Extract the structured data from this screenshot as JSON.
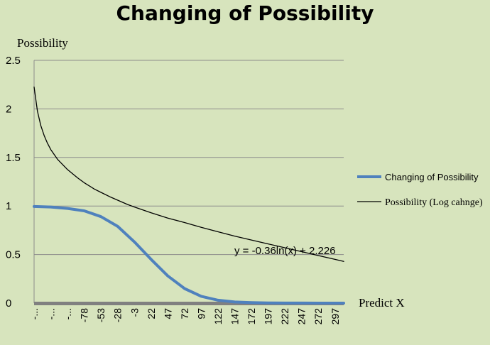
{
  "chart_data": {
    "type": "line",
    "title": "Changing of Possibility",
    "ylabel": "Possibility",
    "xlabel": "Predict X",
    "ylim": [
      0,
      2.5
    ],
    "yticks": [
      "0",
      "0.5",
      "1",
      "1.5",
      "2",
      "2.5"
    ],
    "ytick_values": [
      0,
      0.5,
      1,
      1.5,
      2,
      2.5
    ],
    "xlim": [
      -153,
      310
    ],
    "xtick_labels": [
      "-...",
      "-...",
      "-...",
      "-78",
      "-53",
      "-28",
      "-3",
      "22",
      "47",
      "72",
      "97",
      "122",
      "147",
      "172",
      "197",
      "222",
      "247",
      "272",
      "297"
    ],
    "xtick_values": [
      -153,
      -128,
      -103,
      -78,
      -53,
      -28,
      -3,
      22,
      47,
      72,
      97,
      122,
      147,
      172,
      197,
      222,
      247,
      272,
      297
    ],
    "grid": true,
    "legend_position": "right",
    "series": [
      {
        "name": "Changing of Possibility",
        "color": "#4f81bd",
        "x": [
          -153,
          -128,
          -103,
          -78,
          -53,
          -28,
          -3,
          22,
          47,
          72,
          97,
          122,
          147,
          172,
          197,
          222,
          247,
          272,
          297,
          310
        ],
        "y": [
          0.995,
          0.99,
          0.975,
          0.95,
          0.89,
          0.79,
          0.63,
          0.45,
          0.28,
          0.15,
          0.07,
          0.03,
          0.012,
          0.005,
          0.002,
          0.001,
          0.0005,
          0.0002,
          0.0001,
          0.0001
        ]
      },
      {
        "name": "Possibility (Log cahnge)",
        "color": "#000000",
        "x": [
          -153,
          -148,
          -143,
          -138,
          -133,
          -128,
          -118,
          -103,
          -88,
          -78,
          -63,
          -53,
          -38,
          -28,
          -13,
          -3,
          22,
          47,
          72,
          97,
          122,
          147,
          172,
          197,
          222,
          247,
          272,
          297,
          310
        ],
        "y": [
          2.226,
          1.977,
          1.83,
          1.727,
          1.647,
          1.581,
          1.481,
          1.375,
          1.29,
          1.24,
          1.175,
          1.14,
          1.09,
          1.06,
          1.015,
          0.99,
          0.93,
          0.875,
          0.83,
          0.78,
          0.735,
          0.69,
          0.65,
          0.61,
          0.57,
          0.53,
          0.49,
          0.45,
          0.429
        ]
      }
    ],
    "annotation": "y = -0.36ln(x) + 2.226"
  }
}
